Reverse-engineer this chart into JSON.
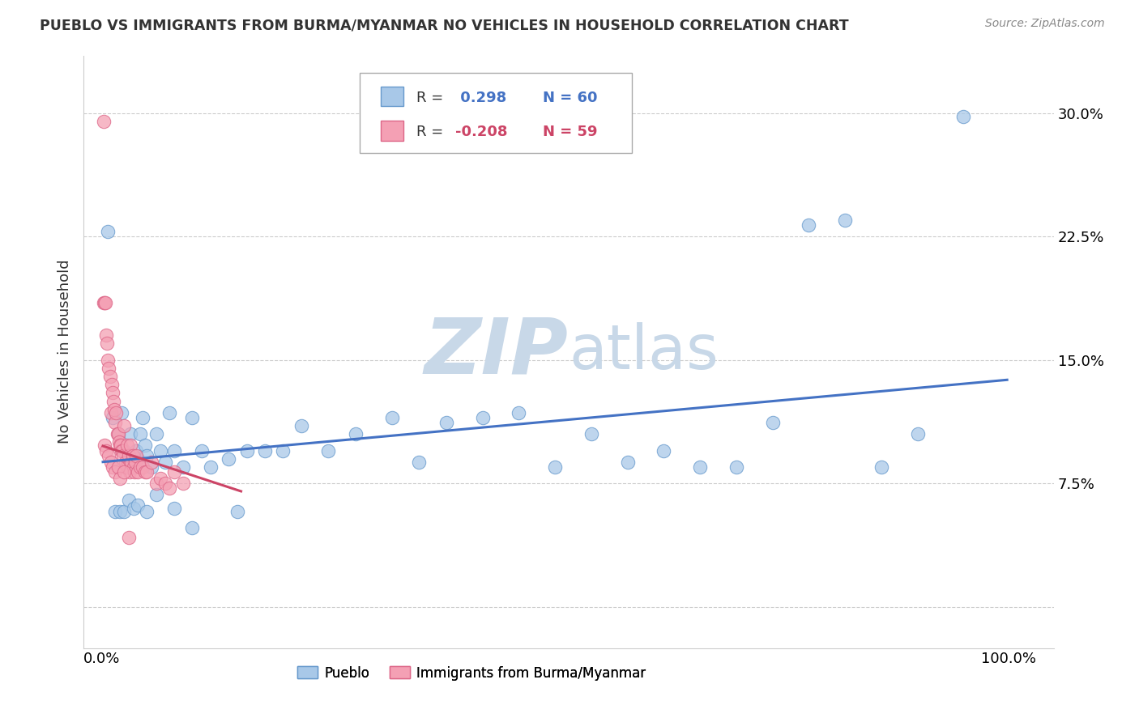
{
  "title": "PUEBLO VS IMMIGRANTS FROM BURMA/MYANMAR NO VEHICLES IN HOUSEHOLD CORRELATION CHART",
  "source": "Source: ZipAtlas.com",
  "ylabel": "No Vehicles in Household",
  "pueblo_color": "#a8c8e8",
  "pueblo_edge": "#6699cc",
  "burma_color": "#f4a0b4",
  "burma_edge": "#dd6688",
  "line_blue": "#4472c4",
  "line_pink": "#cc4466",
  "watermark_color": "#c8d8e8",
  "grid_color": "#cccccc",
  "xlim": [
    -0.02,
    1.05
  ],
  "ylim": [
    -0.025,
    0.335
  ],
  "yticks": [
    0.0,
    0.075,
    0.15,
    0.225,
    0.3
  ],
  "ytick_labels": [
    "",
    "7.5%",
    "15.0%",
    "22.5%",
    "30.0%"
  ],
  "xticks": [
    0.0,
    1.0
  ],
  "xtick_labels": [
    "0.0%",
    "100.0%"
  ],
  "blue_line_x": [
    0.0,
    1.0
  ],
  "blue_line_y": [
    0.088,
    0.138
  ],
  "pink_line_x": [
    0.0,
    0.155
  ],
  "pink_line_y": [
    0.098,
    0.07
  ],
  "pueblo_x": [
    0.007,
    0.012,
    0.018,
    0.022,
    0.025,
    0.028,
    0.03,
    0.032,
    0.035,
    0.038,
    0.04,
    0.042,
    0.045,
    0.048,
    0.05,
    0.055,
    0.06,
    0.065,
    0.07,
    0.075,
    0.08,
    0.09,
    0.1,
    0.11,
    0.12,
    0.14,
    0.16,
    0.18,
    0.2,
    0.22,
    0.25,
    0.28,
    0.32,
    0.35,
    0.38,
    0.42,
    0.46,
    0.5,
    0.54,
    0.58,
    0.62,
    0.66,
    0.7,
    0.74,
    0.78,
    0.82,
    0.86,
    0.9,
    0.015,
    0.02,
    0.025,
    0.03,
    0.035,
    0.04,
    0.05,
    0.06,
    0.08,
    0.1,
    0.15,
    0.95
  ],
  "pueblo_y": [
    0.228,
    0.115,
    0.105,
    0.118,
    0.095,
    0.092,
    0.085,
    0.105,
    0.088,
    0.095,
    0.09,
    0.105,
    0.115,
    0.098,
    0.092,
    0.085,
    0.105,
    0.095,
    0.088,
    0.118,
    0.095,
    0.085,
    0.115,
    0.095,
    0.085,
    0.09,
    0.095,
    0.095,
    0.095,
    0.11,
    0.095,
    0.105,
    0.115,
    0.088,
    0.112,
    0.115,
    0.118,
    0.085,
    0.105,
    0.088,
    0.095,
    0.085,
    0.085,
    0.112,
    0.232,
    0.235,
    0.085,
    0.105,
    0.058,
    0.058,
    0.058,
    0.065,
    0.06,
    0.062,
    0.058,
    0.068,
    0.06,
    0.048,
    0.058,
    0.298
  ],
  "burma_x": [
    0.002,
    0.003,
    0.004,
    0.005,
    0.006,
    0.007,
    0.008,
    0.009,
    0.01,
    0.011,
    0.012,
    0.013,
    0.014,
    0.015,
    0.016,
    0.017,
    0.018,
    0.019,
    0.02,
    0.021,
    0.022,
    0.023,
    0.024,
    0.025,
    0.026,
    0.027,
    0.028,
    0.029,
    0.03,
    0.031,
    0.032,
    0.033,
    0.034,
    0.035,
    0.036,
    0.037,
    0.038,
    0.04,
    0.042,
    0.045,
    0.048,
    0.05,
    0.055,
    0.06,
    0.065,
    0.07,
    0.075,
    0.08,
    0.09,
    0.003,
    0.005,
    0.008,
    0.01,
    0.012,
    0.015,
    0.018,
    0.02,
    0.025,
    0.03
  ],
  "burma_y": [
    0.185,
    0.185,
    0.185,
    0.165,
    0.16,
    0.15,
    0.145,
    0.14,
    0.118,
    0.135,
    0.13,
    0.125,
    0.12,
    0.112,
    0.118,
    0.105,
    0.105,
    0.1,
    0.098,
    0.098,
    0.095,
    0.095,
    0.092,
    0.11,
    0.088,
    0.085,
    0.098,
    0.085,
    0.092,
    0.082,
    0.098,
    0.088,
    0.092,
    0.085,
    0.082,
    0.088,
    0.092,
    0.082,
    0.085,
    0.085,
    0.082,
    0.082,
    0.088,
    0.075,
    0.078,
    0.075,
    0.072,
    0.082,
    0.075,
    0.098,
    0.095,
    0.092,
    0.088,
    0.085,
    0.082,
    0.085,
    0.078,
    0.082,
    0.042
  ]
}
